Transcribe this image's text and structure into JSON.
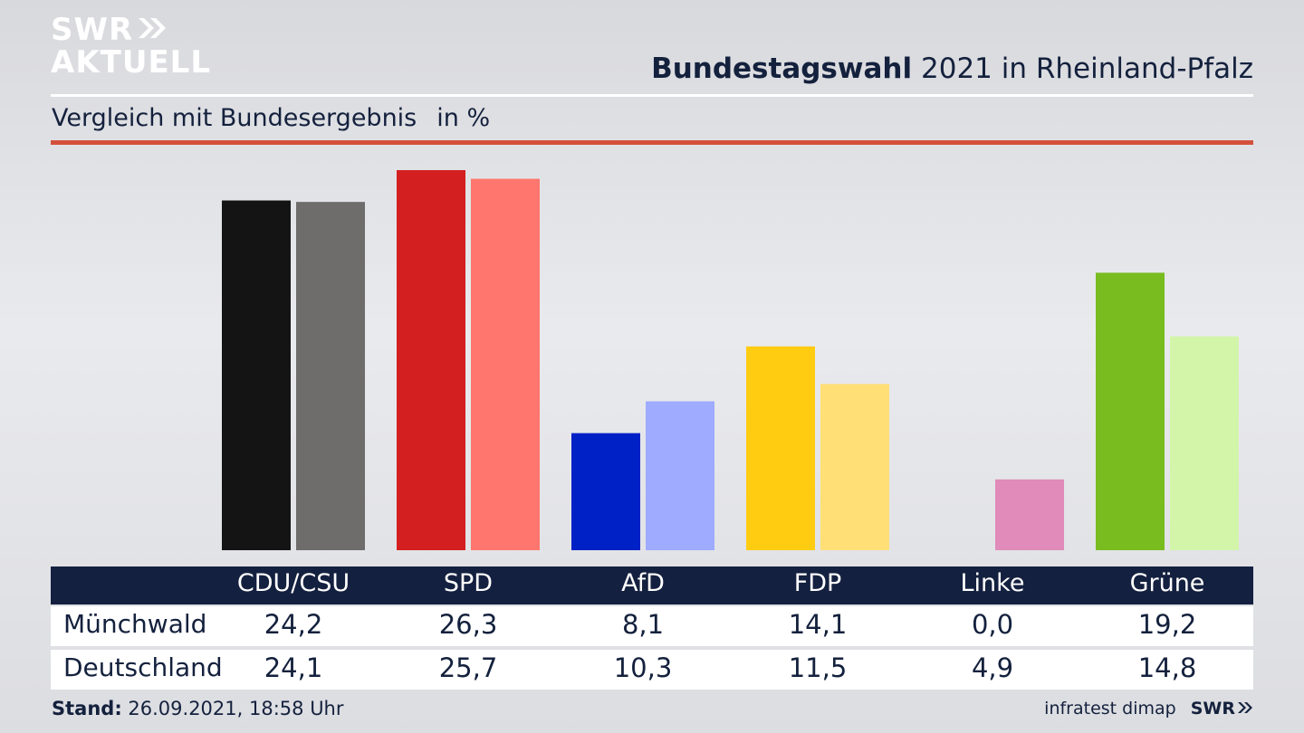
{
  "header": {
    "logo_line1": "SWR",
    "logo_line2": "AKTUELL",
    "title_bold": "Bundestagswahl",
    "title_rest": "2021 in Rheinland-Pfalz",
    "subtitle": "Vergleich mit Bundesergebnis",
    "subtitle_unit": "in %"
  },
  "colors": {
    "navy": "#14203f",
    "accent_red": "#d3503c"
  },
  "chart_data": {
    "type": "bar",
    "categories": [
      "CDU/CSU",
      "SPD",
      "AfD",
      "FDP",
      "Linke",
      "Grüne"
    ],
    "series": [
      {
        "name": "Münchwald",
        "values": [
          24.2,
          26.3,
          8.1,
          14.1,
          0.0,
          19.2
        ],
        "value_labels": [
          "24,2",
          "26,3",
          "8,1",
          "14,1",
          "0,0",
          "19,2"
        ],
        "colors": [
          "#141414",
          "#d41f20",
          "#0021c6",
          "#ffcc11",
          "#e08bb9",
          "#78bc1f"
        ]
      },
      {
        "name": "Deutschland",
        "values": [
          24.1,
          25.7,
          10.3,
          11.5,
          4.9,
          14.8
        ],
        "value_labels": [
          "24,1",
          "25,7",
          "10,3",
          "11,5",
          "4,9",
          "14,8"
        ],
        "colors": [
          "#6f6d6b",
          "#fe766d",
          "#9eabfe",
          "#ffdf76",
          "#e08bb9",
          "#d3f5aa"
        ]
      }
    ],
    "ylim": [
      0,
      27
    ],
    "grid": false,
    "legend": "table-below"
  },
  "footer": {
    "stand_label": "Stand:",
    "stand_value": "26.09.2021, 18:58 Uhr",
    "source": "infratest dimap",
    "brand": "SWR"
  }
}
